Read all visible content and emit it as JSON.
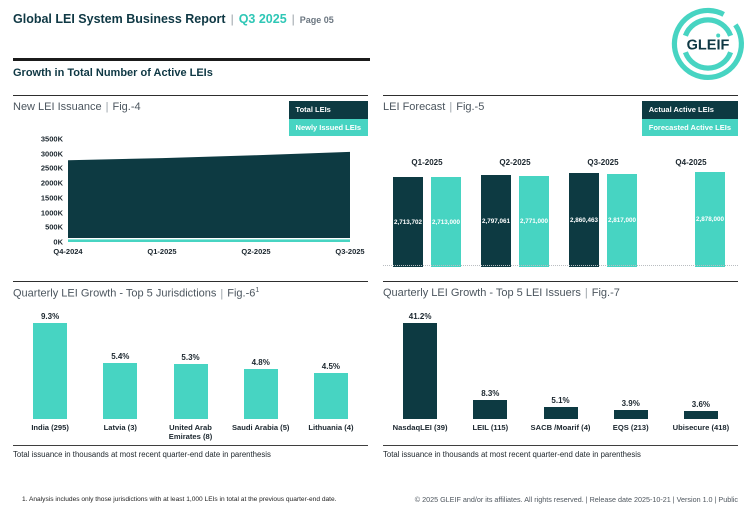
{
  "page": {
    "header": {
      "title": "Global LEI System Business Report",
      "quarter": "Q3 2025",
      "page_label": "Page 05",
      "separator": "|"
    },
    "logo": {
      "text": "GLEIF"
    },
    "section_title": "Growth in Total Number of Active LEIs",
    "footnote": "1. Analysis includes only those jurisdictions with at least 1,000 LEIs in total at the previous quarter-end date.",
    "copyright": "© 2025 GLEIF and/or its affiliates. All rights reserved. | Release date 2025-10-21 | Version 1.0 | Public"
  },
  "colors": {
    "dark": "#0d3a42",
    "teal": "#47d4c2",
    "header_navy": "#0f3844",
    "title_gray": "#4b555e",
    "axis_text": "#1b262e"
  },
  "chart_data": [
    {
      "id": "fig4",
      "type": "area",
      "title": "New LEI Issuance",
      "fig_label": "Fig.-4",
      "x": [
        "Q4-2024",
        "Q1-2025",
        "Q2-2025",
        "Q3-2025"
      ],
      "series": [
        {
          "name": "Total LEIs",
          "color_key": "dark",
          "values_thousands": [
            2780,
            2850,
            2950,
            3060
          ],
          "estimated_from_pixels": true
        },
        {
          "name": "Newly Issued LEIs",
          "color_key": "teal",
          "values_thousands": [
            90,
            90,
            90,
            90
          ],
          "estimated_from_pixels": true
        }
      ],
      "y_ticks": [
        "3500K",
        "3000K",
        "2500K",
        "2000K",
        "1500K",
        "1000K",
        "500K",
        "0K"
      ],
      "ylim_thousands": [
        0,
        3500
      ],
      "legend_position": "top-right",
      "grid": false
    },
    {
      "id": "fig5",
      "type": "bar",
      "title": "LEI Forecast",
      "fig_label": "Fig.-5",
      "categories": [
        "Q1-2025",
        "Q2-2025",
        "Q3-2025",
        "Q4-2025"
      ],
      "series": [
        {
          "name": "Actual Active LEIs",
          "color_key": "dark",
          "values": [
            2713702,
            2797061,
            2860463,
            null
          ]
        },
        {
          "name": "Forecasted Active LEIs",
          "color_key": "teal",
          "values": [
            2713000,
            2771000,
            2817000,
            2878000
          ]
        }
      ],
      "bar_labels": [
        [
          "2,713,702",
          "2,713,000"
        ],
        [
          "2,797,061",
          "2,771,000"
        ],
        [
          "2,860,463",
          "2,817,000"
        ],
        [
          null,
          "2,878,000"
        ]
      ],
      "legend_position": "top-right",
      "baseline": "dotted",
      "grid": false
    },
    {
      "id": "fig6",
      "type": "bar",
      "title": "Quarterly LEI Growth - Top 5 Jurisdictions",
      "fig_label": "Fig.-6",
      "fig_superscript": "1",
      "categories": [
        "India (295)",
        "Latvia (3)",
        "United Arab Emirates (8)",
        "Saudi Arabia (5)",
        "Lithuania (4)"
      ],
      "values": [
        9.3,
        5.4,
        5.3,
        4.8,
        4.5
      ],
      "value_labels": [
        "9.3%",
        "5.4%",
        "5.3%",
        "4.8%",
        "4.5%"
      ],
      "unit": "percent",
      "color_key": "teal",
      "footer": "Total issuance in thousands at most recent quarter-end date in parenthesis",
      "grid": false
    },
    {
      "id": "fig7",
      "type": "bar",
      "title": "Quarterly LEI Growth - Top 5 LEI Issuers",
      "fig_label": "Fig.-7",
      "categories": [
        "NasdaqLEI (39)",
        "LEIL (115)",
        "SACB /Moarif (4)",
        "EQS (213)",
        "Ubisecure (418)"
      ],
      "values": [
        41.2,
        8.3,
        5.1,
        3.9,
        3.6
      ],
      "value_labels": [
        "41.2%",
        "8.3%",
        "5.1%",
        "3.9%",
        "3.6%"
      ],
      "unit": "percent",
      "color_key": "dark",
      "footer": "Total issuance in thousands at most recent quarter-end date in parenthesis",
      "grid": false
    }
  ]
}
